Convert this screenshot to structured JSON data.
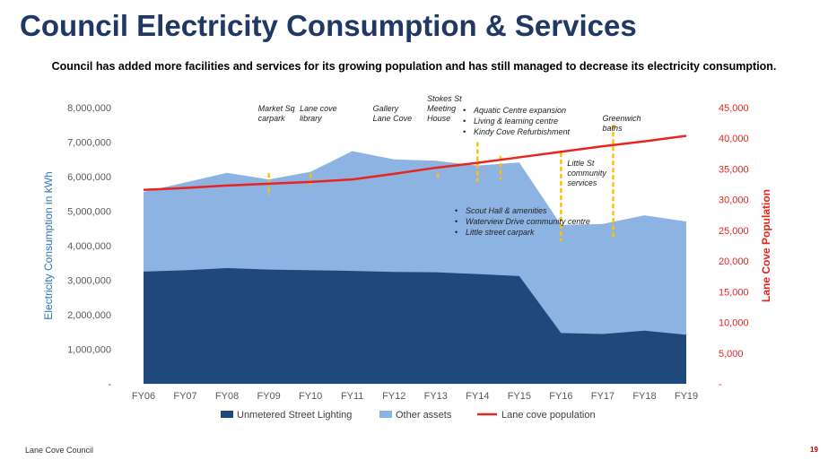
{
  "header": {
    "title": "Council Electricity Consumption & Services",
    "subtitle": "Council has added more facilities and services for its growing population and has still managed to decrease its electricity consumption."
  },
  "footer": {
    "org": "Lane Cove Council",
    "page": "19"
  },
  "chart_data": {
    "type": "area",
    "categories": [
      "FY06",
      "FY07",
      "FY08",
      "FY09",
      "FY10",
      "FY11",
      "FY12",
      "FY13",
      "FY14",
      "FY15",
      "FY16",
      "FY17",
      "FY18",
      "FY19"
    ],
    "series": [
      {
        "name": "Unmetered Street Lighting",
        "axis": "left",
        "type": "area",
        "color": "#1f497d",
        "values": [
          3250000,
          3290000,
          3350000,
          3310000,
          3290000,
          3270000,
          3240000,
          3230000,
          3180000,
          3120000,
          1470000,
          1440000,
          1540000,
          1420000
        ]
      },
      {
        "name": "Other assets",
        "axis": "left",
        "type": "area-stacked",
        "color": "#8db3e2",
        "values": [
          2310000,
          2540000,
          2760000,
          2610000,
          2850000,
          3470000,
          3260000,
          3230000,
          3140000,
          3290000,
          3130000,
          3190000,
          3340000,
          3280000
        ]
      },
      {
        "name": "Lane cove population",
        "axis": "right",
        "type": "line",
        "color": "#e8241f",
        "values": [
          31600,
          31900,
          32300,
          32600,
          32900,
          33300,
          34200,
          35200,
          36000,
          36900,
          37800,
          38700,
          39500,
          40400
        ]
      }
    ],
    "ylabel": "Electricity Consumption in kWh",
    "y2label": "Lane Cove Population",
    "ylim": [
      0,
      8000000
    ],
    "y2lim": [
      0,
      45000
    ],
    "yticks": [
      "-",
      "1,000,000",
      "2,000,000",
      "3,000,000",
      "4,000,000",
      "5,000,000",
      "6,000,000",
      "7,000,000",
      "8,000,000"
    ],
    "y2ticks": [
      "-",
      "5,000",
      "10,000",
      "15,000",
      "20,000",
      "25,000",
      "30,000",
      "35,000",
      "40,000",
      "45,000"
    ],
    "legend_position": "bottom",
    "annotations": [
      {
        "at": 3.0,
        "lines": [
          "Market Sq",
          "carpark"
        ],
        "marker_top": 6.1
      },
      {
        "at": 4.0,
        "lines": [
          "Lane cove",
          "library"
        ],
        "marker_top": 6.1
      },
      {
        "at": 5.75,
        "lines": [
          "Gallery",
          "Lane Cove"
        ],
        "marker_top": 6.1
      },
      {
        "at": 7.05,
        "lines": [
          "Stokes St",
          "Meeting",
          "House"
        ],
        "marker_top": 6.1
      },
      {
        "at": 8.0,
        "lines": [],
        "marker_top": 7.0
      },
      {
        "at": 8.55,
        "lines": [],
        "marker_top": 6.6
      },
      {
        "at": 10.0,
        "lines": [
          "Little St",
          "community",
          "services"
        ],
        "marker_top": 6.7
      },
      {
        "at": 11.25,
        "lines": [
          "Greenwich",
          "baths"
        ],
        "marker_top": 7.5
      }
    ],
    "bullet_groups": [
      {
        "items": [
          "Aquatic Centre expansion",
          "Living & learning centre",
          "Kindy Cove Refurbishment"
        ]
      },
      {
        "items": [
          "Scout Hall & amenities",
          "Waterview Drive community centre",
          "Little street carpark"
        ]
      }
    ]
  }
}
